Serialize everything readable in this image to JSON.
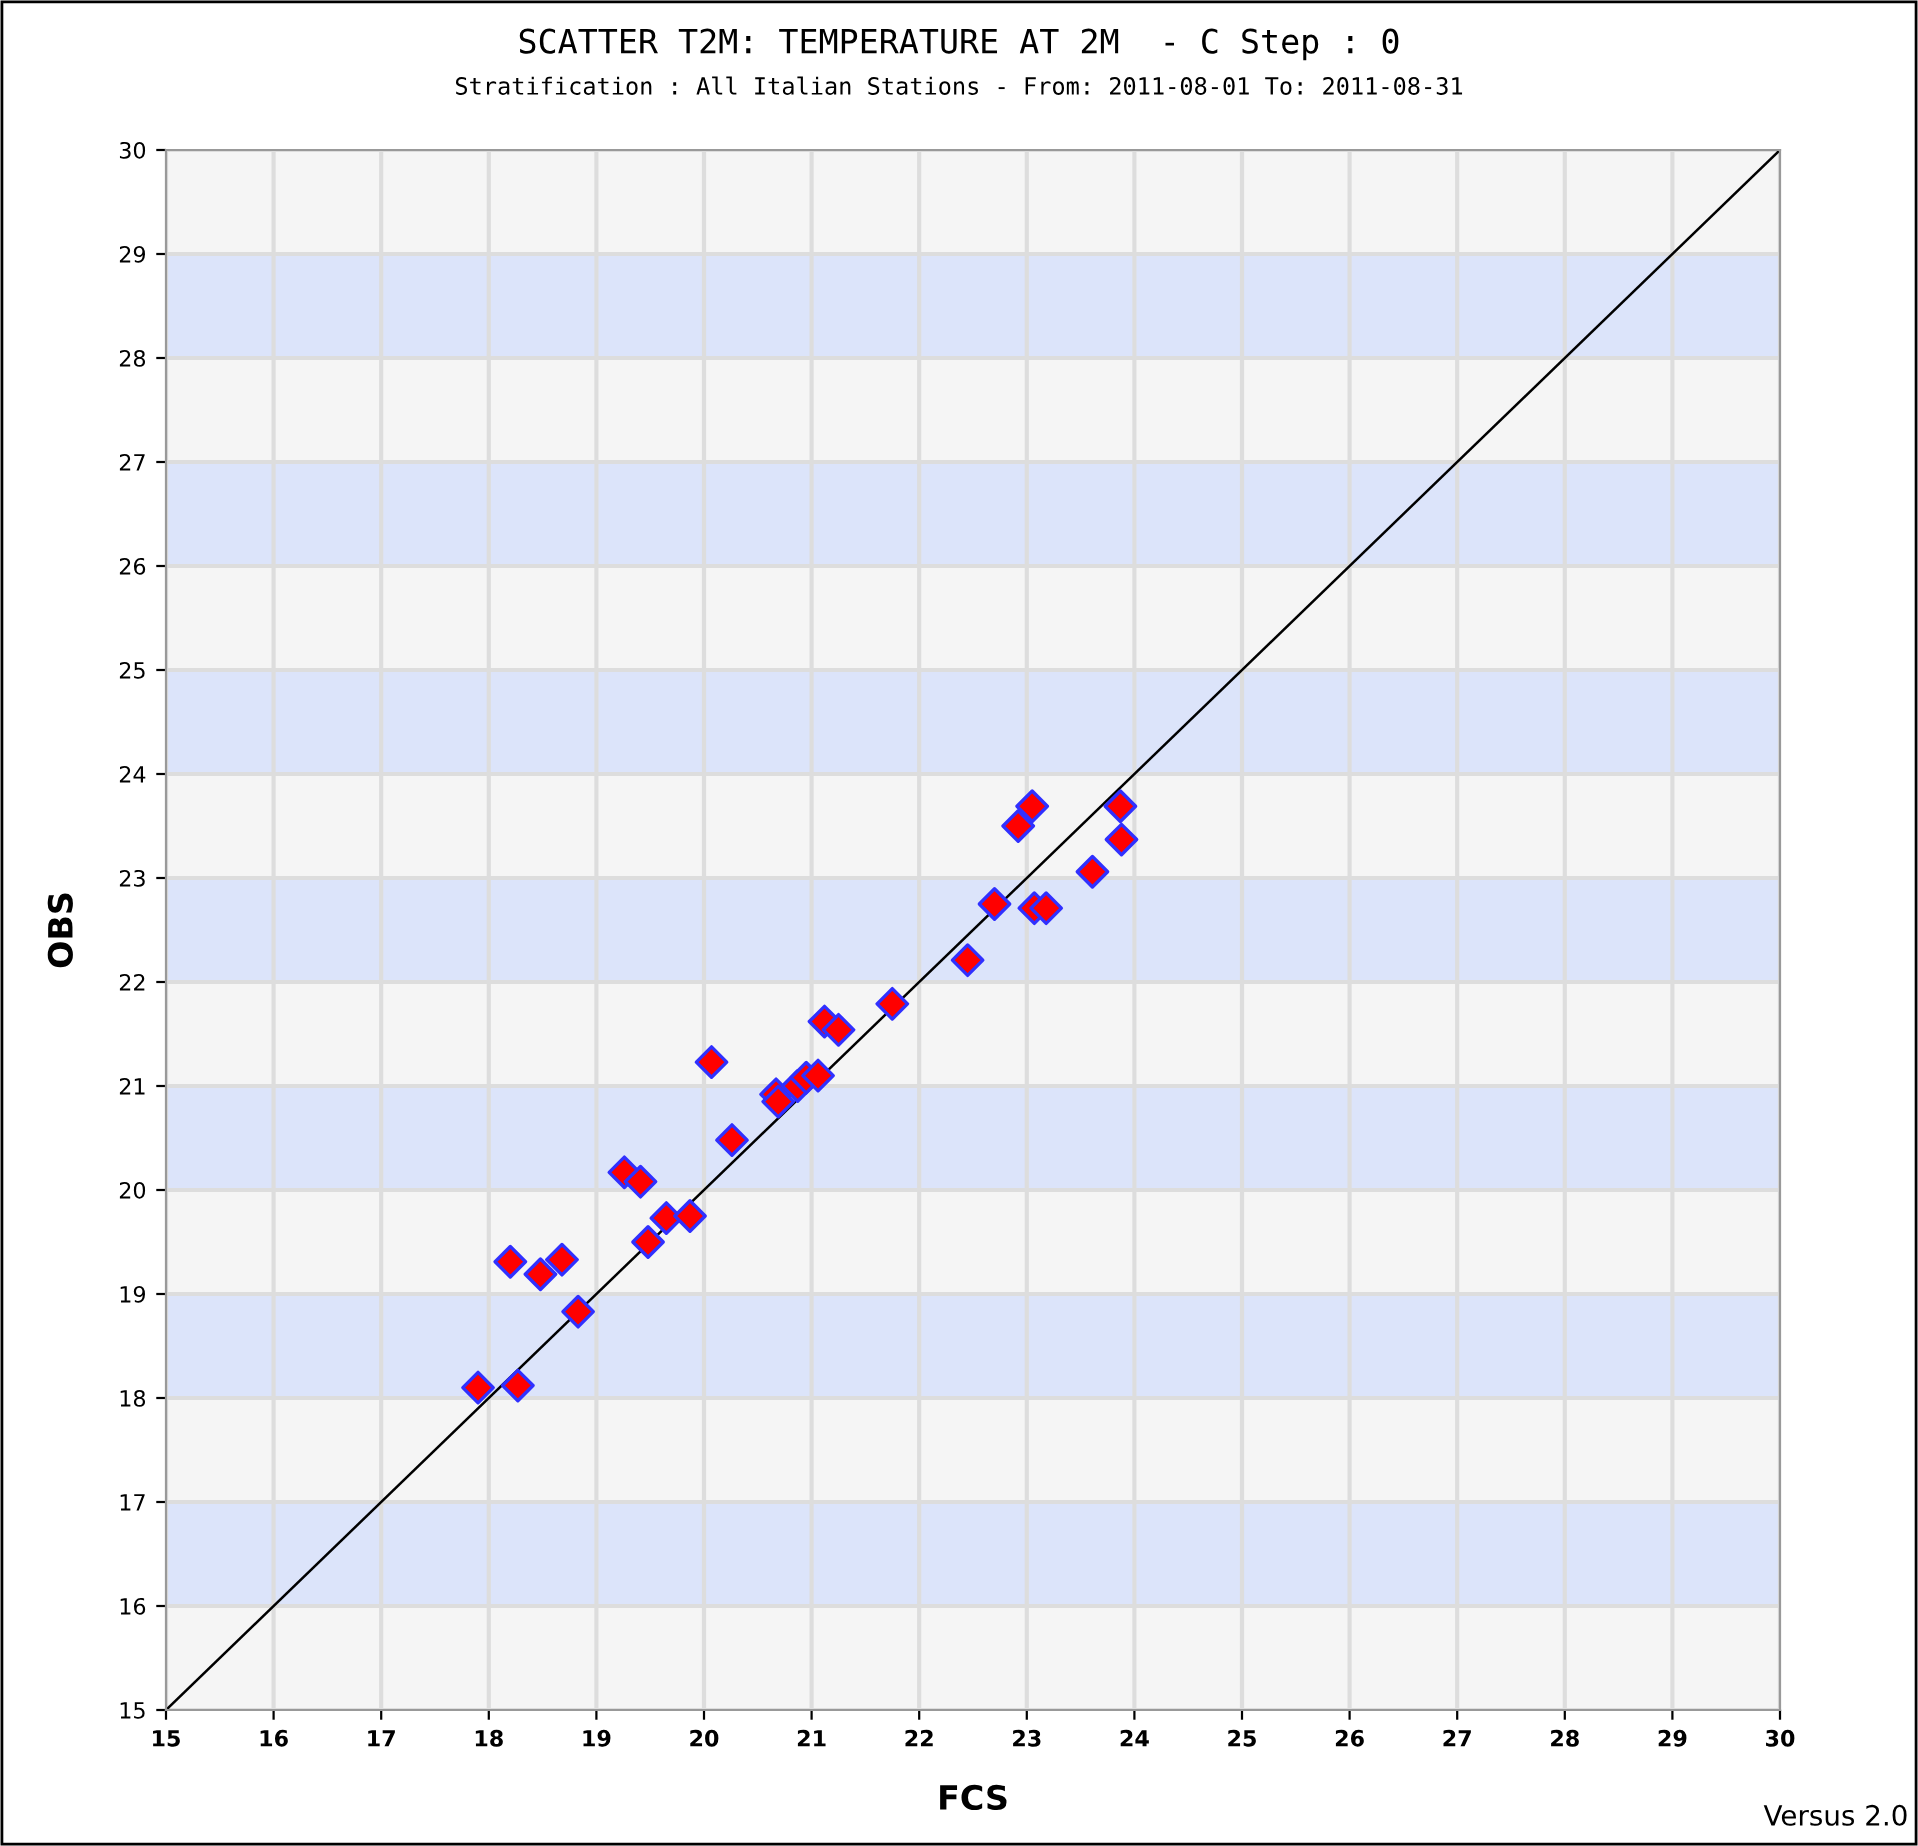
{
  "chart_data": {
    "type": "scatter",
    "title": "SCATTER T2M: TEMPERATURE AT 2M  - C Step : 0",
    "subtitle": "Stratification : All Italian Stations - From: 2011-08-01 To: 2011-08-31",
    "xlabel": "FCS",
    "ylabel": "OBS",
    "xlim": [
      15,
      30
    ],
    "ylim": [
      15,
      30
    ],
    "xticks": [
      15,
      16,
      17,
      18,
      19,
      20,
      21,
      22,
      23,
      24,
      25,
      26,
      27,
      28,
      29,
      30
    ],
    "yticks": [
      15,
      16,
      17,
      18,
      19,
      20,
      21,
      22,
      23,
      24,
      25,
      26,
      27,
      28,
      29,
      30
    ],
    "grid": true,
    "marker": "diamond",
    "bands": [
      {
        "axis": "y",
        "from": 16,
        "to": 17,
        "color": "#dce4fa"
      },
      {
        "axis": "y",
        "from": 18,
        "to": 19,
        "color": "#dce4fa"
      },
      {
        "axis": "y",
        "from": 20,
        "to": 21,
        "color": "#dce4fa"
      },
      {
        "axis": "y",
        "from": 22,
        "to": 23,
        "color": "#dce4fa"
      },
      {
        "axis": "y",
        "from": 24,
        "to": 25,
        "color": "#dce4fa"
      },
      {
        "axis": "y",
        "from": 26,
        "to": 27,
        "color": "#dce4fa"
      },
      {
        "axis": "y",
        "from": 28,
        "to": 29,
        "color": "#dce4fa"
      }
    ],
    "series": [
      {
        "type": "line",
        "marker": "none",
        "color": "#000000",
        "x": [
          15,
          30
        ],
        "values": [
          15,
          30
        ]
      },
      {
        "color": "#ff0000",
        "x": [
          17.9,
          18.27,
          18.2,
          18.48,
          18.68,
          18.83,
          19.26,
          19.41,
          19.48,
          19.65,
          19.87,
          20.07,
          20.26,
          20.67,
          20.69,
          20.87,
          20.95,
          21.06,
          21.12,
          21.25,
          21.75,
          22.45,
          22.7,
          22.92,
          23.05,
          23.07,
          23.18,
          23.61,
          23.87,
          23.88
        ],
        "values": [
          18.1,
          18.12,
          19.31,
          19.19,
          19.33,
          18.83,
          20.17,
          20.08,
          19.5,
          19.73,
          19.75,
          21.23,
          20.48,
          20.92,
          20.85,
          21.0,
          21.08,
          21.1,
          21.62,
          21.54,
          21.79,
          22.21,
          22.75,
          23.5,
          23.69,
          22.71,
          22.71,
          23.06,
          23.69,
          23.37
        ]
      }
    ],
    "annotations": [
      "Versus 2.0"
    ]
  }
}
